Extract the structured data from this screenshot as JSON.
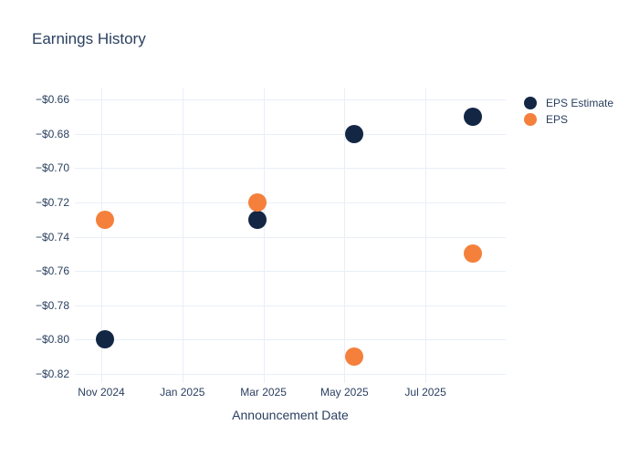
{
  "chart_data": {
    "type": "scatter",
    "title": "Earnings History",
    "xlabel": "Announcement Date",
    "ylabel": "",
    "legend_position": "right",
    "grid": true,
    "background": "#ffffff",
    "grid_color": "#e9eef7",
    "text_color": "#2a3f5f",
    "marker_size_px": 20,
    "x_axis_unit": "months since Nov 1 2024",
    "x_domain": [
      -0.653,
      9.98
    ],
    "y_domain_top": -0.6535,
    "y_domain_bottom": -0.8253,
    "x_ticks": [
      {
        "m": 0,
        "label": "Nov 2024"
      },
      {
        "m": 2,
        "label": "Jan 2025"
      },
      {
        "m": 4,
        "label": "Mar 2025"
      },
      {
        "m": 6,
        "label": "May 2025"
      },
      {
        "m": 8,
        "label": "Jul 2025"
      }
    ],
    "y_ticks": [
      {
        "v": -0.66,
        "label": "−$0.66"
      },
      {
        "v": -0.68,
        "label": "−$0.68"
      },
      {
        "v": -0.7,
        "label": "−$0.70"
      },
      {
        "v": -0.72,
        "label": "−$0.72"
      },
      {
        "v": -0.74,
        "label": "−$0.74"
      },
      {
        "v": -0.76,
        "label": "−$0.76"
      },
      {
        "v": -0.78,
        "label": "−$0.78"
      },
      {
        "v": -0.8,
        "label": "−$0.80"
      },
      {
        "v": -0.82,
        "label": "−$0.82"
      }
    ],
    "announcement_dates_approx": [
      "2024-11-04",
      "2025-02-26",
      "2025-05-08",
      "2025-08-06"
    ],
    "x_months": [
      0.1,
      3.86,
      6.23,
      9.17
    ],
    "series": [
      {
        "name": "EPS Estimate",
        "color": "#132644",
        "values": [
          -0.8,
          -0.73,
          -0.68,
          -0.67
        ],
        "value_labels": [
          "−$0.80",
          "−$0.73",
          "−$0.68",
          "−$0.67"
        ]
      },
      {
        "name": "EPS",
        "color": "#f4803c",
        "values": [
          -0.73,
          -0.72,
          -0.81,
          -0.75
        ],
        "value_labels": [
          "−$0.73",
          "−$0.72",
          "−$0.81",
          "−$0.75"
        ]
      }
    ]
  }
}
